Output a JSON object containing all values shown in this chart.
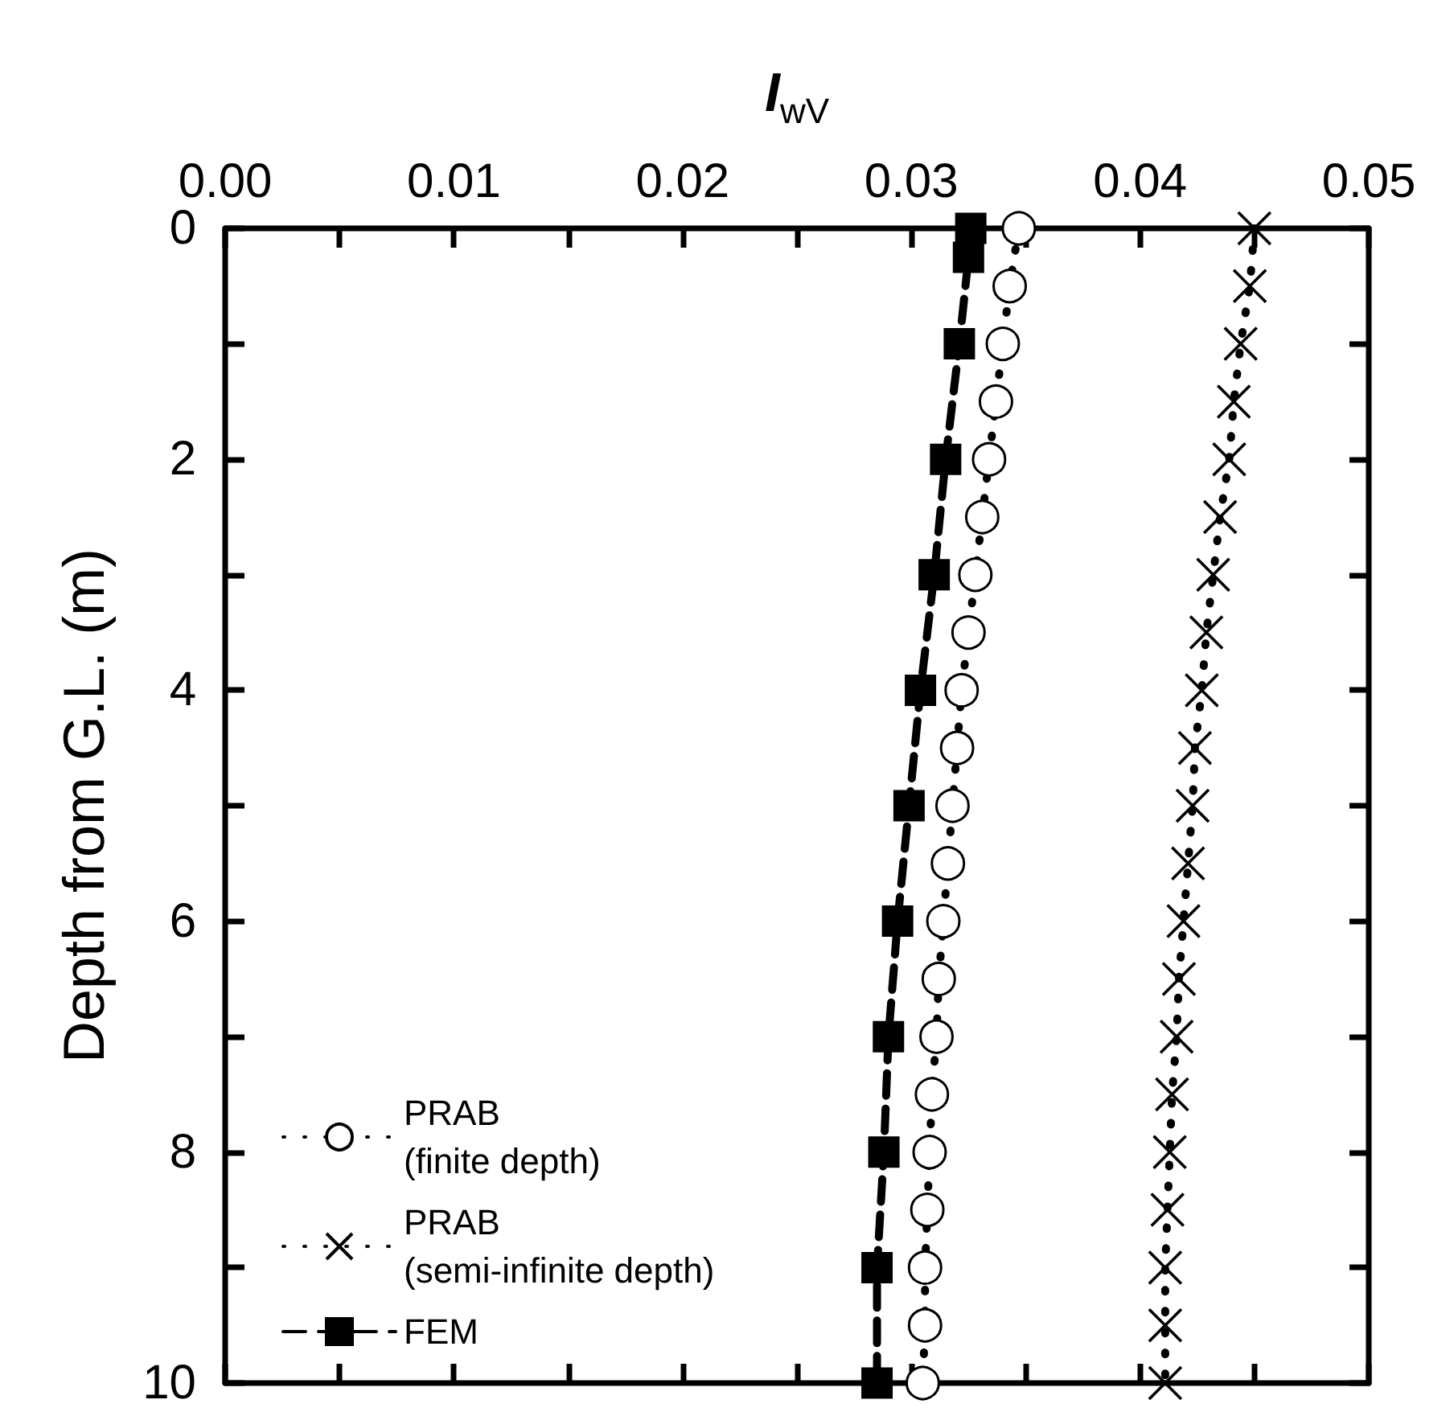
{
  "chart_data": {
    "type": "line",
    "xlabel": "I$_{wV}$",
    "ylabel": "Depth from G.L. (m)",
    "xlim": [
      0,
      0.05
    ],
    "xticks": [
      {
        "value": 0,
        "label": "0.00"
      },
      {
        "value": 0.005,
        "label": null
      },
      {
        "value": 0.01,
        "label": "0.01"
      },
      {
        "value": 0.015,
        "label": null
      },
      {
        "value": 0.02,
        "label": "0.02"
      },
      {
        "value": 0.025,
        "label": null
      },
      {
        "value": 0.03,
        "label": "0.03"
      },
      {
        "value": 0.035,
        "label": null
      },
      {
        "value": 0.04,
        "label": "0.04"
      },
      {
        "value": 0.045,
        "label": null
      },
      {
        "value": 0.05,
        "label": "0.05"
      }
    ],
    "ylim": [
      10,
      0
    ],
    "yticks": [
      0,
      {
        "value": 1,
        "label": null
      },
      2,
      {
        "value": 3,
        "label": null
      },
      4,
      {
        "value": 5,
        "label": null
      },
      6,
      {
        "value": 7,
        "label": null
      },
      8,
      {
        "value": 9,
        "label": null
      },
      10
    ],
    "grid": false,
    "legend": "bottom left",
    "series": [
      {
        "name": "PRAB\n(finite depth)",
        "color": "#000000",
        "marker": "circle",
        "line_style": "dotted",
        "x": [
          0.0347,
          0.0343,
          0.034,
          0.0337,
          0.0334,
          0.0331,
          0.0328,
          0.0325,
          0.0322,
          0.032,
          0.0318,
          0.0316,
          0.0314,
          0.0312,
          0.0311,
          0.0309,
          0.0308,
          0.0307,
          0.0306,
          0.0306,
          0.0305
        ],
        "values": [
          0,
          0.5,
          1,
          1.5,
          2,
          2.5,
          3,
          3.5,
          4,
          4.5,
          5,
          5.5,
          6,
          6.5,
          7,
          7.5,
          8,
          8.5,
          9,
          9.5,
          10
        ]
      },
      {
        "name": "PRAB\n(semi-infinite depth)",
        "color": "#000000",
        "marker": "cross",
        "line_style": "dotted",
        "x": [
          0.045,
          0.0448,
          0.0444,
          0.0441,
          0.0439,
          0.0435,
          0.0432,
          0.0429,
          0.0427,
          0.0424,
          0.0423,
          0.0421,
          0.0419,
          0.0417,
          0.0416,
          0.0414,
          0.0413,
          0.0412,
          0.0411,
          0.0411,
          0.0411
        ],
        "values": [
          0,
          0.5,
          1,
          1.5,
          2,
          2.5,
          3,
          3.5,
          4,
          4.5,
          5,
          5.5,
          6,
          6.5,
          7,
          7.5,
          8,
          8.5,
          9,
          9.5,
          10
        ]
      },
      {
        "name": "FEM",
        "color": "#000000",
        "marker": "square",
        "line_style": "dashed",
        "x": [
          0.0326,
          0.0325,
          0.0321,
          0.0315,
          0.031,
          0.0304,
          0.0299,
          0.0294,
          0.029,
          0.0288,
          0.0285,
          0.0285
        ],
        "values": [
          0,
          0.25,
          1,
          2,
          3,
          4,
          5,
          6,
          7,
          8,
          9,
          10
        ]
      }
    ]
  }
}
